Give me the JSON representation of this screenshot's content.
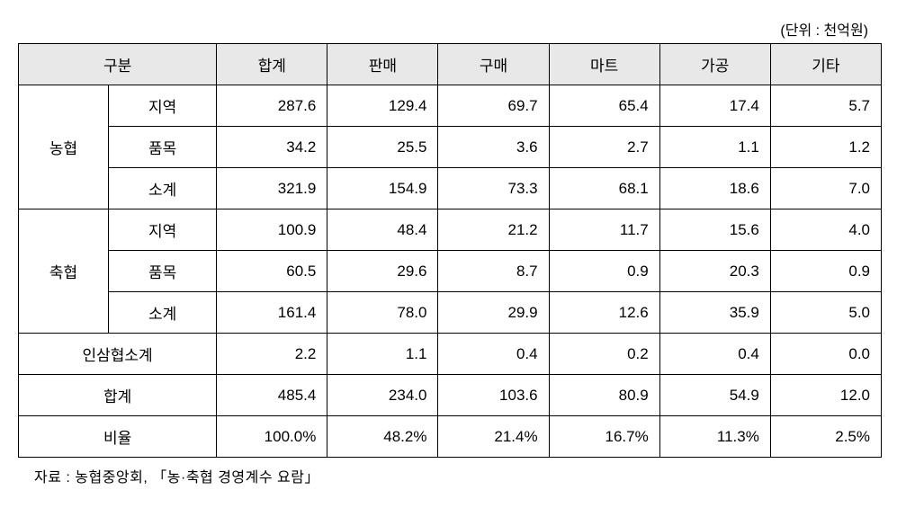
{
  "unit_label": "(단위 : 천억원)",
  "headers": {
    "category": "구분",
    "total": "합계",
    "sales": "판매",
    "purchase": "구매",
    "mart": "마트",
    "processing": "가공",
    "other": "기타"
  },
  "groups": {
    "nonghyup": "농협",
    "chukhyup": "축협",
    "insamhyup": "인삼협소계",
    "total": "합계",
    "ratio": "비율"
  },
  "subcats": {
    "region": "지역",
    "item": "품목",
    "subtotal": "소계"
  },
  "rows": {
    "nonghyup_region": [
      "287.6",
      "129.4",
      "69.7",
      "65.4",
      "17.4",
      "5.7"
    ],
    "nonghyup_item": [
      "34.2",
      "25.5",
      "3.6",
      "2.7",
      "1.1",
      "1.2"
    ],
    "nonghyup_subtotal": [
      "321.9",
      "154.9",
      "73.3",
      "68.1",
      "18.6",
      "7.0"
    ],
    "chukhyup_region": [
      "100.9",
      "48.4",
      "21.2",
      "11.7",
      "15.6",
      "4.0"
    ],
    "chukhyup_item": [
      "60.5",
      "29.6",
      "8.7",
      "0.9",
      "20.3",
      "0.9"
    ],
    "chukhyup_subtotal": [
      "161.4",
      "78.0",
      "29.9",
      "12.6",
      "35.9",
      "5.0"
    ],
    "insamhyup": [
      "2.2",
      "1.1",
      "0.4",
      "0.2",
      "0.4",
      "0.0"
    ],
    "total": [
      "485.4",
      "234.0",
      "103.6",
      "80.9",
      "54.9",
      "12.0"
    ],
    "ratio": [
      "100.0%",
      "48.2%",
      "21.4%",
      "16.7%",
      "11.3%",
      "2.5%"
    ]
  },
  "source_note": "자료 : 농협중앙회, 「농·축협 경영계수 요람」",
  "styling": {
    "header_bg": "#e8e8e8",
    "border_color": "#000000",
    "background": "#ffffff",
    "font_size_cell": 17,
    "font_size_note": 16,
    "font_family": "Malgun Gothic"
  }
}
